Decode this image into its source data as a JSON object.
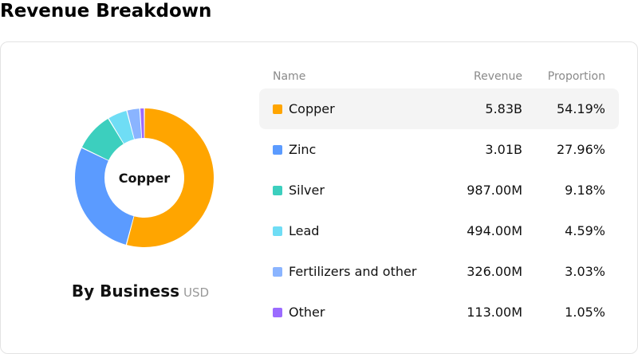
{
  "page": {
    "title": "Revenue Breakdown"
  },
  "chart": {
    "caption_title": "By Business",
    "caption_unit": "USD",
    "center_label": "Copper"
  },
  "table": {
    "headers": {
      "name": "Name",
      "revenue": "Revenue",
      "proportion": "Proportion"
    },
    "active_index": 0,
    "rows": [
      {
        "name": "Copper",
        "revenue": "5.83B",
        "proportion": "54.19%",
        "color": "#FFA500"
      },
      {
        "name": "Zinc",
        "revenue": "3.01B",
        "proportion": "27.96%",
        "color": "#5B9BFF"
      },
      {
        "name": "Silver",
        "revenue": "987.00M",
        "proportion": "9.18%",
        "color": "#3CCFBE"
      },
      {
        "name": "Lead",
        "revenue": "494.00M",
        "proportion": "4.59%",
        "color": "#6FDDF5"
      },
      {
        "name": "Fertilizers and other",
        "revenue": "326.00M",
        "proportion": "3.03%",
        "color": "#8AB4FF"
      },
      {
        "name": "Other",
        "revenue": "113.00M",
        "proportion": "1.05%",
        "color": "#9B6BFF"
      }
    ]
  },
  "chart_data": {
    "type": "pie",
    "categories": [
      "Copper",
      "Zinc",
      "Silver",
      "Lead",
      "Fertilizers and other",
      "Other"
    ],
    "values": [
      54.19,
      27.96,
      9.18,
      4.59,
      3.03,
      1.05
    ],
    "revenue_labels": [
      "5.83B",
      "3.01B",
      "987.00M",
      "494.00M",
      "326.00M",
      "113.00M"
    ],
    "colors": [
      "#FFA500",
      "#5B9BFF",
      "#3CCFBE",
      "#6FDDF5",
      "#8AB4FF",
      "#9B6BFF"
    ],
    "title": "By Business",
    "unit": "USD",
    "donut": true,
    "highlighted": "Copper"
  }
}
